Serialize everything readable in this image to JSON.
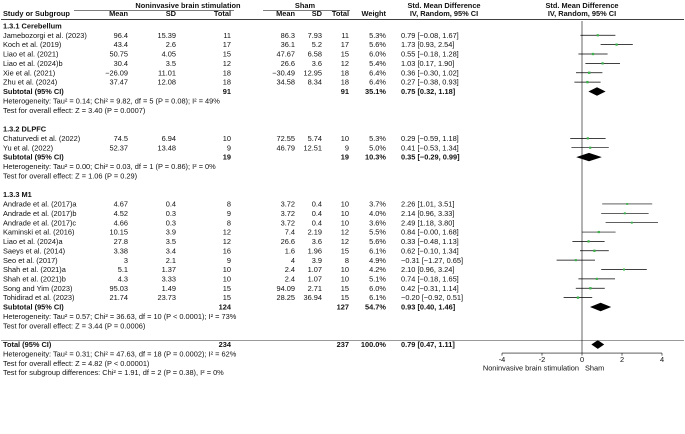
{
  "header": {
    "col_study": "Study or Subgroup",
    "group_exp": "Noninvasive brain stimulation",
    "group_ctl": "Sham",
    "col_mean": "Mean",
    "col_sd": "SD",
    "col_total": "Total",
    "col_weight": "Weight",
    "effect_title": "Std. Mean Difference",
    "effect_method": "IV, Random, 95% CI"
  },
  "chart_data": {
    "type": "forest",
    "xlim": [
      -4,
      4
    ],
    "xticks": [
      "-4",
      "-2",
      "0",
      "2",
      "4"
    ],
    "xtick_values": [
      -4,
      -2,
      0,
      2,
      4
    ],
    "xlabel_left": "Noninvasive brain stimulation",
    "xlabel_right": "Sham",
    "rows": [
      {
        "kind": "heading",
        "label": "1.3.1 Cerebellum"
      },
      {
        "kind": "study",
        "label": "Jamebozorgi et al. (2023)",
        "m1": "96.4",
        "sd1": "15.39",
        "n1": "11",
        "m2": "86.3",
        "sd2": "7.93",
        "n2": "11",
        "w": "5.3%",
        "ci": "0.79 [−0.08, 1.67]",
        "est": 0.79,
        "lo": -0.08,
        "hi": 1.67
      },
      {
        "kind": "study",
        "label": "Koch et al. (2019)",
        "m1": "43.4",
        "sd1": "2.6",
        "n1": "17",
        "m2": "36.1",
        "sd2": "5.2",
        "n2": "17",
        "w": "5.6%",
        "ci": "1.73 [0.93, 2.54]",
        "est": 1.73,
        "lo": 0.93,
        "hi": 2.54
      },
      {
        "kind": "study",
        "label": "Liao et al. (2021)",
        "m1": "50.75",
        "sd1": "4.05",
        "n1": "15",
        "m2": "47.67",
        "sd2": "6.58",
        "n2": "15",
        "w": "6.0%",
        "ci": "0.55 [−0.18, 1.28]",
        "est": 0.55,
        "lo": -0.18,
        "hi": 1.28
      },
      {
        "kind": "study",
        "label": "Liao et al. (2024)b",
        "m1": "30.4",
        "sd1": "3.5",
        "n1": "12",
        "m2": "26.6",
        "sd2": "3.6",
        "n2": "12",
        "w": "5.4%",
        "ci": "1.03 [0.17, 1.90]",
        "est": 1.03,
        "lo": 0.17,
        "hi": 1.9
      },
      {
        "kind": "study",
        "label": "Xie et al. (2021)",
        "m1": "−26.09",
        "sd1": "11.01",
        "n1": "18",
        "m2": "−30.49",
        "sd2": "12.95",
        "n2": "18",
        "w": "6.4%",
        "ci": "0.36 [−0.30, 1.02]",
        "est": 0.36,
        "lo": -0.3,
        "hi": 1.02
      },
      {
        "kind": "study",
        "label": "Zhu et al. (2024)",
        "m1": "37.47",
        "sd1": "12.08",
        "n1": "18",
        "m2": "34.58",
        "sd2": "8.34",
        "n2": "18",
        "w": "6.4%",
        "ci": "0.27 [−0.38, 0.93]",
        "est": 0.27,
        "lo": -0.38,
        "hi": 0.93
      },
      {
        "kind": "subtotal",
        "label": "Subtotal (95% CI)",
        "n1": "91",
        "n2": "91",
        "w": "35.1%",
        "ci": "0.75 [0.32, 1.18]",
        "est": 0.75,
        "lo": 0.32,
        "hi": 1.18
      },
      {
        "kind": "note",
        "label": "Heterogeneity: Tau² = 0.14; Chi² = 9.82, df = 5 (P = 0.08); I² = 49%"
      },
      {
        "kind": "note",
        "label": "Test for overall effect: Z = 3.40 (P = 0.0007)"
      },
      {
        "kind": "blank"
      },
      {
        "kind": "heading",
        "label": "1.3.2 DLPFC"
      },
      {
        "kind": "study",
        "label": "Chaturvedi et al. (2022)",
        "m1": "74.5",
        "sd1": "6.94",
        "n1": "10",
        "m2": "72.55",
        "sd2": "5.74",
        "n2": "10",
        "w": "5.3%",
        "ci": "0.29 [−0.59, 1.18]",
        "est": 0.29,
        "lo": -0.59,
        "hi": 1.18
      },
      {
        "kind": "study",
        "label": "Yu et al. (2022)",
        "m1": "52.37",
        "sd1": "13.48",
        "n1": "9",
        "m2": "46.79",
        "sd2": "12.51",
        "n2": "9",
        "w": "5.0%",
        "ci": "0.41 [−0.53, 1.34]",
        "est": 0.41,
        "lo": -0.53,
        "hi": 1.34
      },
      {
        "kind": "subtotal",
        "label": "Subtotal (95% CI)",
        "n1": "19",
        "n2": "19",
        "w": "10.3%",
        "ci": "0.35 [−0.29, 0.99]",
        "est": 0.35,
        "lo": -0.29,
        "hi": 0.99
      },
      {
        "kind": "note",
        "label": "Heterogeneity: Tau² = 0.00; Chi² = 0.03, df = 1 (P = 0.86); I² = 0%"
      },
      {
        "kind": "note",
        "label": "Test for overall effect: Z = 1.06 (P = 0.29)"
      },
      {
        "kind": "blank"
      },
      {
        "kind": "heading",
        "label": "1.3.3 M1"
      },
      {
        "kind": "study",
        "label": "Andrade et al. (2017)a",
        "m1": "4.67",
        "sd1": "0.4",
        "n1": "8",
        "m2": "3.72",
        "sd2": "0.4",
        "n2": "10",
        "w": "3.7%",
        "ci": "2.26 [1.01, 3.51]",
        "est": 2.26,
        "lo": 1.01,
        "hi": 3.51
      },
      {
        "kind": "study",
        "label": "Andrade et al. (2017)b",
        "m1": "4.52",
        "sd1": "0.3",
        "n1": "9",
        "m2": "3.72",
        "sd2": "0.4",
        "n2": "10",
        "w": "4.0%",
        "ci": "2.14 [0.96, 3.33]",
        "est": 2.14,
        "lo": 0.96,
        "hi": 3.33
      },
      {
        "kind": "study",
        "label": "Andrade et al. (2017)c",
        "m1": "4.66",
        "sd1": "0.3",
        "n1": "8",
        "m2": "3.72",
        "sd2": "0.4",
        "n2": "10",
        "w": "3.6%",
        "ci": "2.49 [1.18, 3.80]",
        "est": 2.49,
        "lo": 1.18,
        "hi": 3.8
      },
      {
        "kind": "study",
        "label": "Kaminski et al. (2016)",
        "m1": "10.15",
        "sd1": "3.9",
        "n1": "12",
        "m2": "7.4",
        "sd2": "2.19",
        "n2": "12",
        "w": "5.5%",
        "ci": "0.84 [−0.00, 1.68]",
        "est": 0.84,
        "lo": 0.0,
        "hi": 1.68
      },
      {
        "kind": "study",
        "label": "Liao et al. (2024)a",
        "m1": "27.8",
        "sd1": "3.5",
        "n1": "12",
        "m2": "26.6",
        "sd2": "3.6",
        "n2": "12",
        "w": "5.6%",
        "ci": "0.33 [−0.48, 1.13]",
        "est": 0.33,
        "lo": -0.48,
        "hi": 1.13
      },
      {
        "kind": "study",
        "label": "Saeys et al. (2014)",
        "m1": "3.38",
        "sd1": "3.4",
        "n1": "16",
        "m2": "1.6",
        "sd2": "1.96",
        "n2": "15",
        "w": "6.1%",
        "ci": "0.62 [−0.10, 1.34]",
        "est": 0.62,
        "lo": -0.1,
        "hi": 1.34
      },
      {
        "kind": "study",
        "label": "Seo et al. (2017)",
        "m1": "3",
        "sd1": "2.1",
        "n1": "9",
        "m2": "4",
        "sd2": "3.9",
        "n2": "8",
        "w": "4.9%",
        "ci": "−0.31 [−1.27, 0.65]",
        "est": -0.31,
        "lo": -1.27,
        "hi": 0.65
      },
      {
        "kind": "study",
        "label": "Shah et al. (2021)a",
        "m1": "5.1",
        "sd1": "1.37",
        "n1": "10",
        "m2": "2.4",
        "sd2": "1.07",
        "n2": "10",
        "w": "4.2%",
        "ci": "2.10 [0.96, 3.24]",
        "est": 2.1,
        "lo": 0.96,
        "hi": 3.24
      },
      {
        "kind": "study",
        "label": "Shah et al. (2021)b",
        "m1": "4.3",
        "sd1": "3.33",
        "n1": "10",
        "m2": "2.4",
        "sd2": "1.07",
        "n2": "10",
        "w": "5.1%",
        "ci": "0.74 [−0.18, 1.65]",
        "est": 0.74,
        "lo": -0.18,
        "hi": 1.65
      },
      {
        "kind": "study",
        "label": "Song and Yim (2023)",
        "m1": "95.03",
        "sd1": "1.49",
        "n1": "15",
        "m2": "94.09",
        "sd2": "2.71",
        "n2": "15",
        "w": "6.0%",
        "ci": "0.42 [−0.31, 1.14]",
        "est": 0.42,
        "lo": -0.31,
        "hi": 1.14
      },
      {
        "kind": "study",
        "label": "Tohidirad et al. (2023)",
        "m1": "21.74",
        "sd1": "23.73",
        "n1": "15",
        "m2": "28.25",
        "sd2": "36.94",
        "n2": "15",
        "w": "6.1%",
        "ci": "−0.20 [−0.92, 0.51]",
        "est": -0.2,
        "lo": -0.92,
        "hi": 0.51
      },
      {
        "kind": "subtotal",
        "label": "Subtotal (95% CI)",
        "n1": "124",
        "n2": "127",
        "w": "54.7%",
        "ci": "0.93 [0.40, 1.46]",
        "est": 0.93,
        "lo": 0.4,
        "hi": 1.46
      },
      {
        "kind": "note",
        "label": "Heterogeneity: Tau² = 0.57; Chi² = 36.63, df = 10 (P < 0.0001); I² = 73%"
      },
      {
        "kind": "note",
        "label": "Test for overall effect: Z = 3.44 (P = 0.0006)"
      },
      {
        "kind": "blank"
      },
      {
        "kind": "total",
        "label": "Total (95% CI)",
        "n1": "234",
        "n2": "237",
        "w": "100.0%",
        "ci": "0.79 [0.47, 1.11]",
        "est": 0.79,
        "lo": 0.47,
        "hi": 1.11
      },
      {
        "kind": "note",
        "label": "Heterogeneity: Tau² = 0.31; Chi² = 47.63, df = 18 (P = 0.0002); I² = 62%"
      },
      {
        "kind": "note",
        "label": "Test for overall effect: Z = 4.82 (P < 0.00001)"
      },
      {
        "kind": "note",
        "label": "Test for subgroup differences: Chi² = 1.91, df = 2 (P = 0.38), I² = 0%"
      }
    ]
  },
  "colors": {
    "study_marker": "#3cb24b",
    "line": "#000000"
  }
}
